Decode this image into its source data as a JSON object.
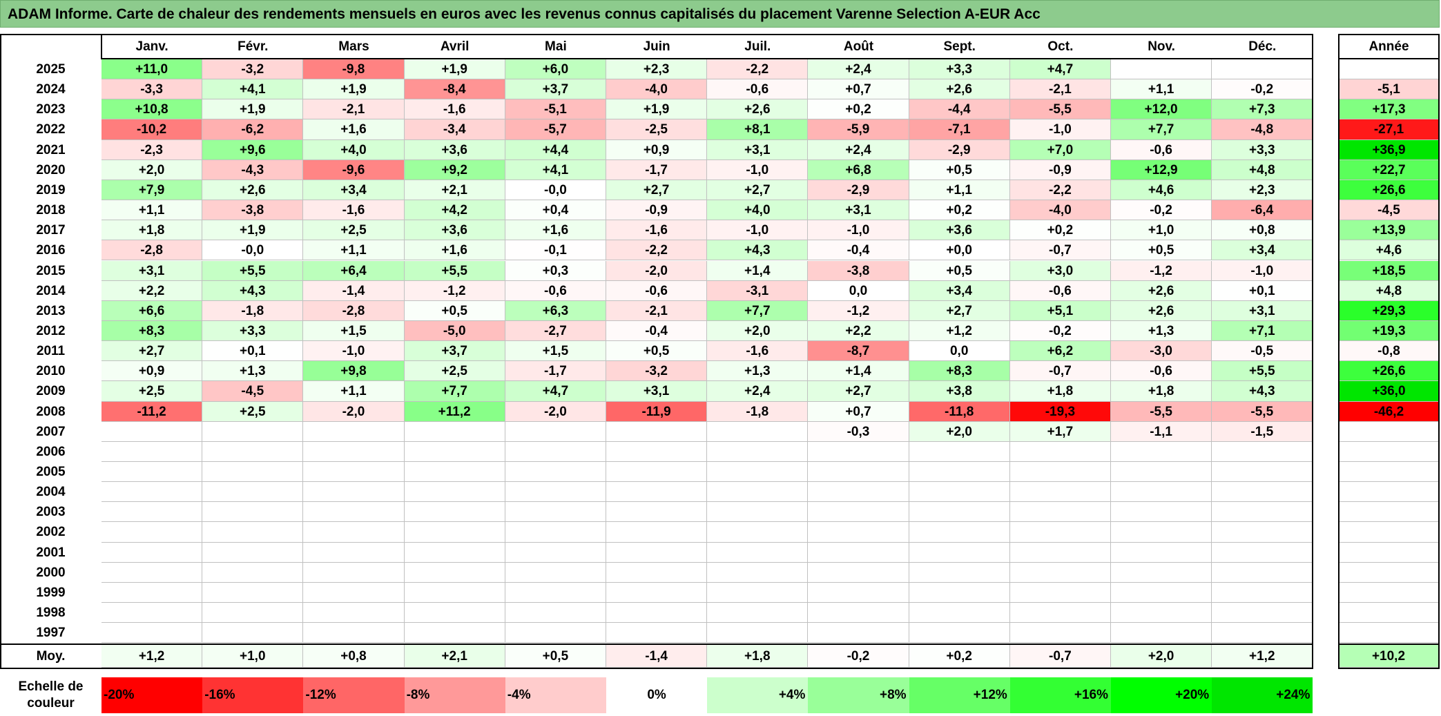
{
  "title": "ADAM Informe. Carte de chaleur des rendements mensuels en euros avec les revenus connus capitalisés du placement Varenne Selection A-EUR Acc",
  "chart_data": {
    "type": "heatmap",
    "columns": [
      "Janv.",
      "Févr.",
      "Mars",
      "Avril",
      "Mai",
      "Juin",
      "Juil.",
      "Août",
      "Sept.",
      "Oct.",
      "Nov.",
      "Déc."
    ],
    "annual_header": "Année",
    "rows": [
      {
        "year": "2025",
        "months": [
          "+11,0",
          "-3,2",
          "-9,8",
          "+1,9",
          "+6,0",
          "+2,3",
          "-2,2",
          "+2,4",
          "+3,3",
          "+4,7",
          "",
          ""
        ],
        "annual": ""
      },
      {
        "year": "2024",
        "months": [
          "-3,3",
          "+4,1",
          "+1,9",
          "-8,4",
          "+3,7",
          "-4,0",
          "-0,6",
          "+0,7",
          "+2,6",
          "-2,1",
          "+1,1",
          "-0,2"
        ],
        "annual": "-5,1"
      },
      {
        "year": "2023",
        "months": [
          "+10,8",
          "+1,9",
          "-2,1",
          "-1,6",
          "-5,1",
          "+1,9",
          "+2,6",
          "+0,2",
          "-4,4",
          "-5,5",
          "+12,0",
          "+7,3"
        ],
        "annual": "+17,3"
      },
      {
        "year": "2022",
        "months": [
          "-10,2",
          "-6,2",
          "+1,6",
          "-3,4",
          "-5,7",
          "-2,5",
          "+8,1",
          "-5,9",
          "-7,1",
          "-1,0",
          "+7,7",
          "-4,8"
        ],
        "annual": "-27,1"
      },
      {
        "year": "2021",
        "months": [
          "-2,3",
          "+9,6",
          "+4,0",
          "+3,6",
          "+4,4",
          "+0,9",
          "+3,1",
          "+2,4",
          "-2,9",
          "+7,0",
          "-0,6",
          "+3,3"
        ],
        "annual": "+36,9"
      },
      {
        "year": "2020",
        "months": [
          "+2,0",
          "-4,3",
          "-9,6",
          "+9,2",
          "+4,1",
          "-1,7",
          "-1,0",
          "+6,8",
          "+0,5",
          "-0,9",
          "+12,9",
          "+4,8"
        ],
        "annual": "+22,7"
      },
      {
        "year": "2019",
        "months": [
          "+7,9",
          "+2,6",
          "+3,4",
          "+2,1",
          "-0,0",
          "+2,7",
          "+2,7",
          "-2,9",
          "+1,1",
          "-2,2",
          "+4,6",
          "+2,3"
        ],
        "annual": "+26,6"
      },
      {
        "year": "2018",
        "months": [
          "+1,1",
          "-3,8",
          "-1,6",
          "+4,2",
          "+0,4",
          "-0,9",
          "+4,0",
          "+3,1",
          "+0,2",
          "-4,0",
          "-0,2",
          "-6,4"
        ],
        "annual": "-4,5"
      },
      {
        "year": "2017",
        "months": [
          "+1,8",
          "+1,9",
          "+2,5",
          "+3,6",
          "+1,6",
          "-1,6",
          "-1,0",
          "-1,0",
          "+3,6",
          "+0,2",
          "+1,0",
          "+0,8"
        ],
        "annual": "+13,9"
      },
      {
        "year": "2016",
        "months": [
          "-2,8",
          "-0,0",
          "+1,1",
          "+1,6",
          "-0,1",
          "-2,2",
          "+4,3",
          "-0,4",
          "+0,0",
          "-0,7",
          "+0,5",
          "+3,4"
        ],
        "annual": "+4,6"
      },
      {
        "year": "2015",
        "months": [
          "+3,1",
          "+5,5",
          "+6,4",
          "+5,5",
          "+0,3",
          "-2,0",
          "+1,4",
          "-3,8",
          "+0,5",
          "+3,0",
          "-1,2",
          "-1,0"
        ],
        "annual": "+18,5"
      },
      {
        "year": "2014",
        "months": [
          "+2,2",
          "+4,3",
          "-1,4",
          "-1,2",
          "-0,6",
          "-0,6",
          "-3,1",
          "0,0",
          "+3,4",
          "-0,6",
          "+2,6",
          "+0,1"
        ],
        "annual": "+4,8"
      },
      {
        "year": "2013",
        "months": [
          "+6,6",
          "-1,8",
          "-2,8",
          "+0,5",
          "+6,3",
          "-2,1",
          "+7,7",
          "-1,2",
          "+2,7",
          "+5,1",
          "+2,6",
          "+3,1"
        ],
        "annual": "+29,3"
      },
      {
        "year": "2012",
        "months": [
          "+8,3",
          "+3,3",
          "+1,5",
          "-5,0",
          "-2,7",
          "-0,4",
          "+2,0",
          "+2,2",
          "+1,2",
          "-0,2",
          "+1,3",
          "+7,1"
        ],
        "annual": "+19,3"
      },
      {
        "year": "2011",
        "months": [
          "+2,7",
          "+0,1",
          "-1,0",
          "+3,7",
          "+1,5",
          "+0,5",
          "-1,6",
          "-8,7",
          "0,0",
          "+6,2",
          "-3,0",
          "-0,5"
        ],
        "annual": "-0,8"
      },
      {
        "year": "2010",
        "months": [
          "+0,9",
          "+1,3",
          "+9,8",
          "+2,5",
          "-1,7",
          "-3,2",
          "+1,3",
          "+1,4",
          "+8,3",
          "-0,7",
          "-0,6",
          "+5,5"
        ],
        "annual": "+26,6"
      },
      {
        "year": "2009",
        "months": [
          "+2,5",
          "-4,5",
          "+1,1",
          "+7,7",
          "+4,7",
          "+3,1",
          "+2,4",
          "+2,7",
          "+3,8",
          "+1,8",
          "+1,8",
          "+4,3"
        ],
        "annual": "+36,0"
      },
      {
        "year": "2008",
        "months": [
          "-11,2",
          "+2,5",
          "-2,0",
          "+11,2",
          "-2,0",
          "-11,9",
          "-1,8",
          "+0,7",
          "-11,8",
          "-19,3",
          "-5,5",
          "-5,5"
        ],
        "annual": "-46,2"
      },
      {
        "year": "2007",
        "months": [
          "",
          "",
          "",
          "",
          "",
          "",
          "",
          "-0,3",
          "+2,0",
          "+1,7",
          "-1,1",
          "-1,5"
        ],
        "annual": ""
      },
      {
        "year": "2006",
        "months": [
          "",
          "",
          "",
          "",
          "",
          "",
          "",
          "",
          "",
          "",
          "",
          ""
        ],
        "annual": ""
      },
      {
        "year": "2005",
        "months": [
          "",
          "",
          "",
          "",
          "",
          "",
          "",
          "",
          "",
          "",
          "",
          ""
        ],
        "annual": ""
      },
      {
        "year": "2004",
        "months": [
          "",
          "",
          "",
          "",
          "",
          "",
          "",
          "",
          "",
          "",
          "",
          ""
        ],
        "annual": ""
      },
      {
        "year": "2003",
        "months": [
          "",
          "",
          "",
          "",
          "",
          "",
          "",
          "",
          "",
          "",
          "",
          ""
        ],
        "annual": ""
      },
      {
        "year": "2002",
        "months": [
          "",
          "",
          "",
          "",
          "",
          "",
          "",
          "",
          "",
          "",
          "",
          ""
        ],
        "annual": ""
      },
      {
        "year": "2001",
        "months": [
          "",
          "",
          "",
          "",
          "",
          "",
          "",
          "",
          "",
          "",
          "",
          ""
        ],
        "annual": ""
      },
      {
        "year": "2000",
        "months": [
          "",
          "",
          "",
          "",
          "",
          "",
          "",
          "",
          "",
          "",
          "",
          ""
        ],
        "annual": ""
      },
      {
        "year": "1999",
        "months": [
          "",
          "",
          "",
          "",
          "",
          "",
          "",
          "",
          "",
          "",
          "",
          ""
        ],
        "annual": ""
      },
      {
        "year": "1998",
        "months": [
          "",
          "",
          "",
          "",
          "",
          "",
          "",
          "",
          "",
          "",
          "",
          ""
        ],
        "annual": ""
      },
      {
        "year": "1997",
        "months": [
          "",
          "",
          "",
          "",
          "",
          "",
          "",
          "",
          "",
          "",
          "",
          ""
        ],
        "annual": ""
      }
    ],
    "average": {
      "label": "Moy.",
      "months": [
        "+1,2",
        "+1,0",
        "+0,8",
        "+2,1",
        "+0,5",
        "-1,4",
        "+1,8",
        "-0,2",
        "+0,2",
        "-0,7",
        "+2,0",
        "+1,2"
      ],
      "annual": "+10,2"
    },
    "color_scale": {
      "label": "Echelle de couleur",
      "stops": [
        {
          "label": "-20%",
          "value": -20,
          "color": "#ff0000"
        },
        {
          "label": "-16%",
          "value": -16,
          "color": "#ff3333"
        },
        {
          "label": "-12%",
          "value": -12,
          "color": "#ff6666"
        },
        {
          "label": "-8%",
          "value": -8,
          "color": "#ff9999"
        },
        {
          "label": "-4%",
          "value": -4,
          "color": "#ffcccc"
        },
        {
          "label": "0%",
          "value": 0,
          "color": "#ffffff"
        },
        {
          "label": "+4%",
          "value": 4,
          "color": "#ccffcc"
        },
        {
          "label": "+8%",
          "value": 8,
          "color": "#99ff99"
        },
        {
          "label": "+12%",
          "value": 12,
          "color": "#66ff66"
        },
        {
          "label": "+16%",
          "value": 16,
          "color": "#33ff33"
        },
        {
          "label": "+20%",
          "value": 20,
          "color": "#00ff00"
        },
        {
          "label": "+24%",
          "value": 24,
          "color": "#00e600"
        }
      ]
    }
  }
}
